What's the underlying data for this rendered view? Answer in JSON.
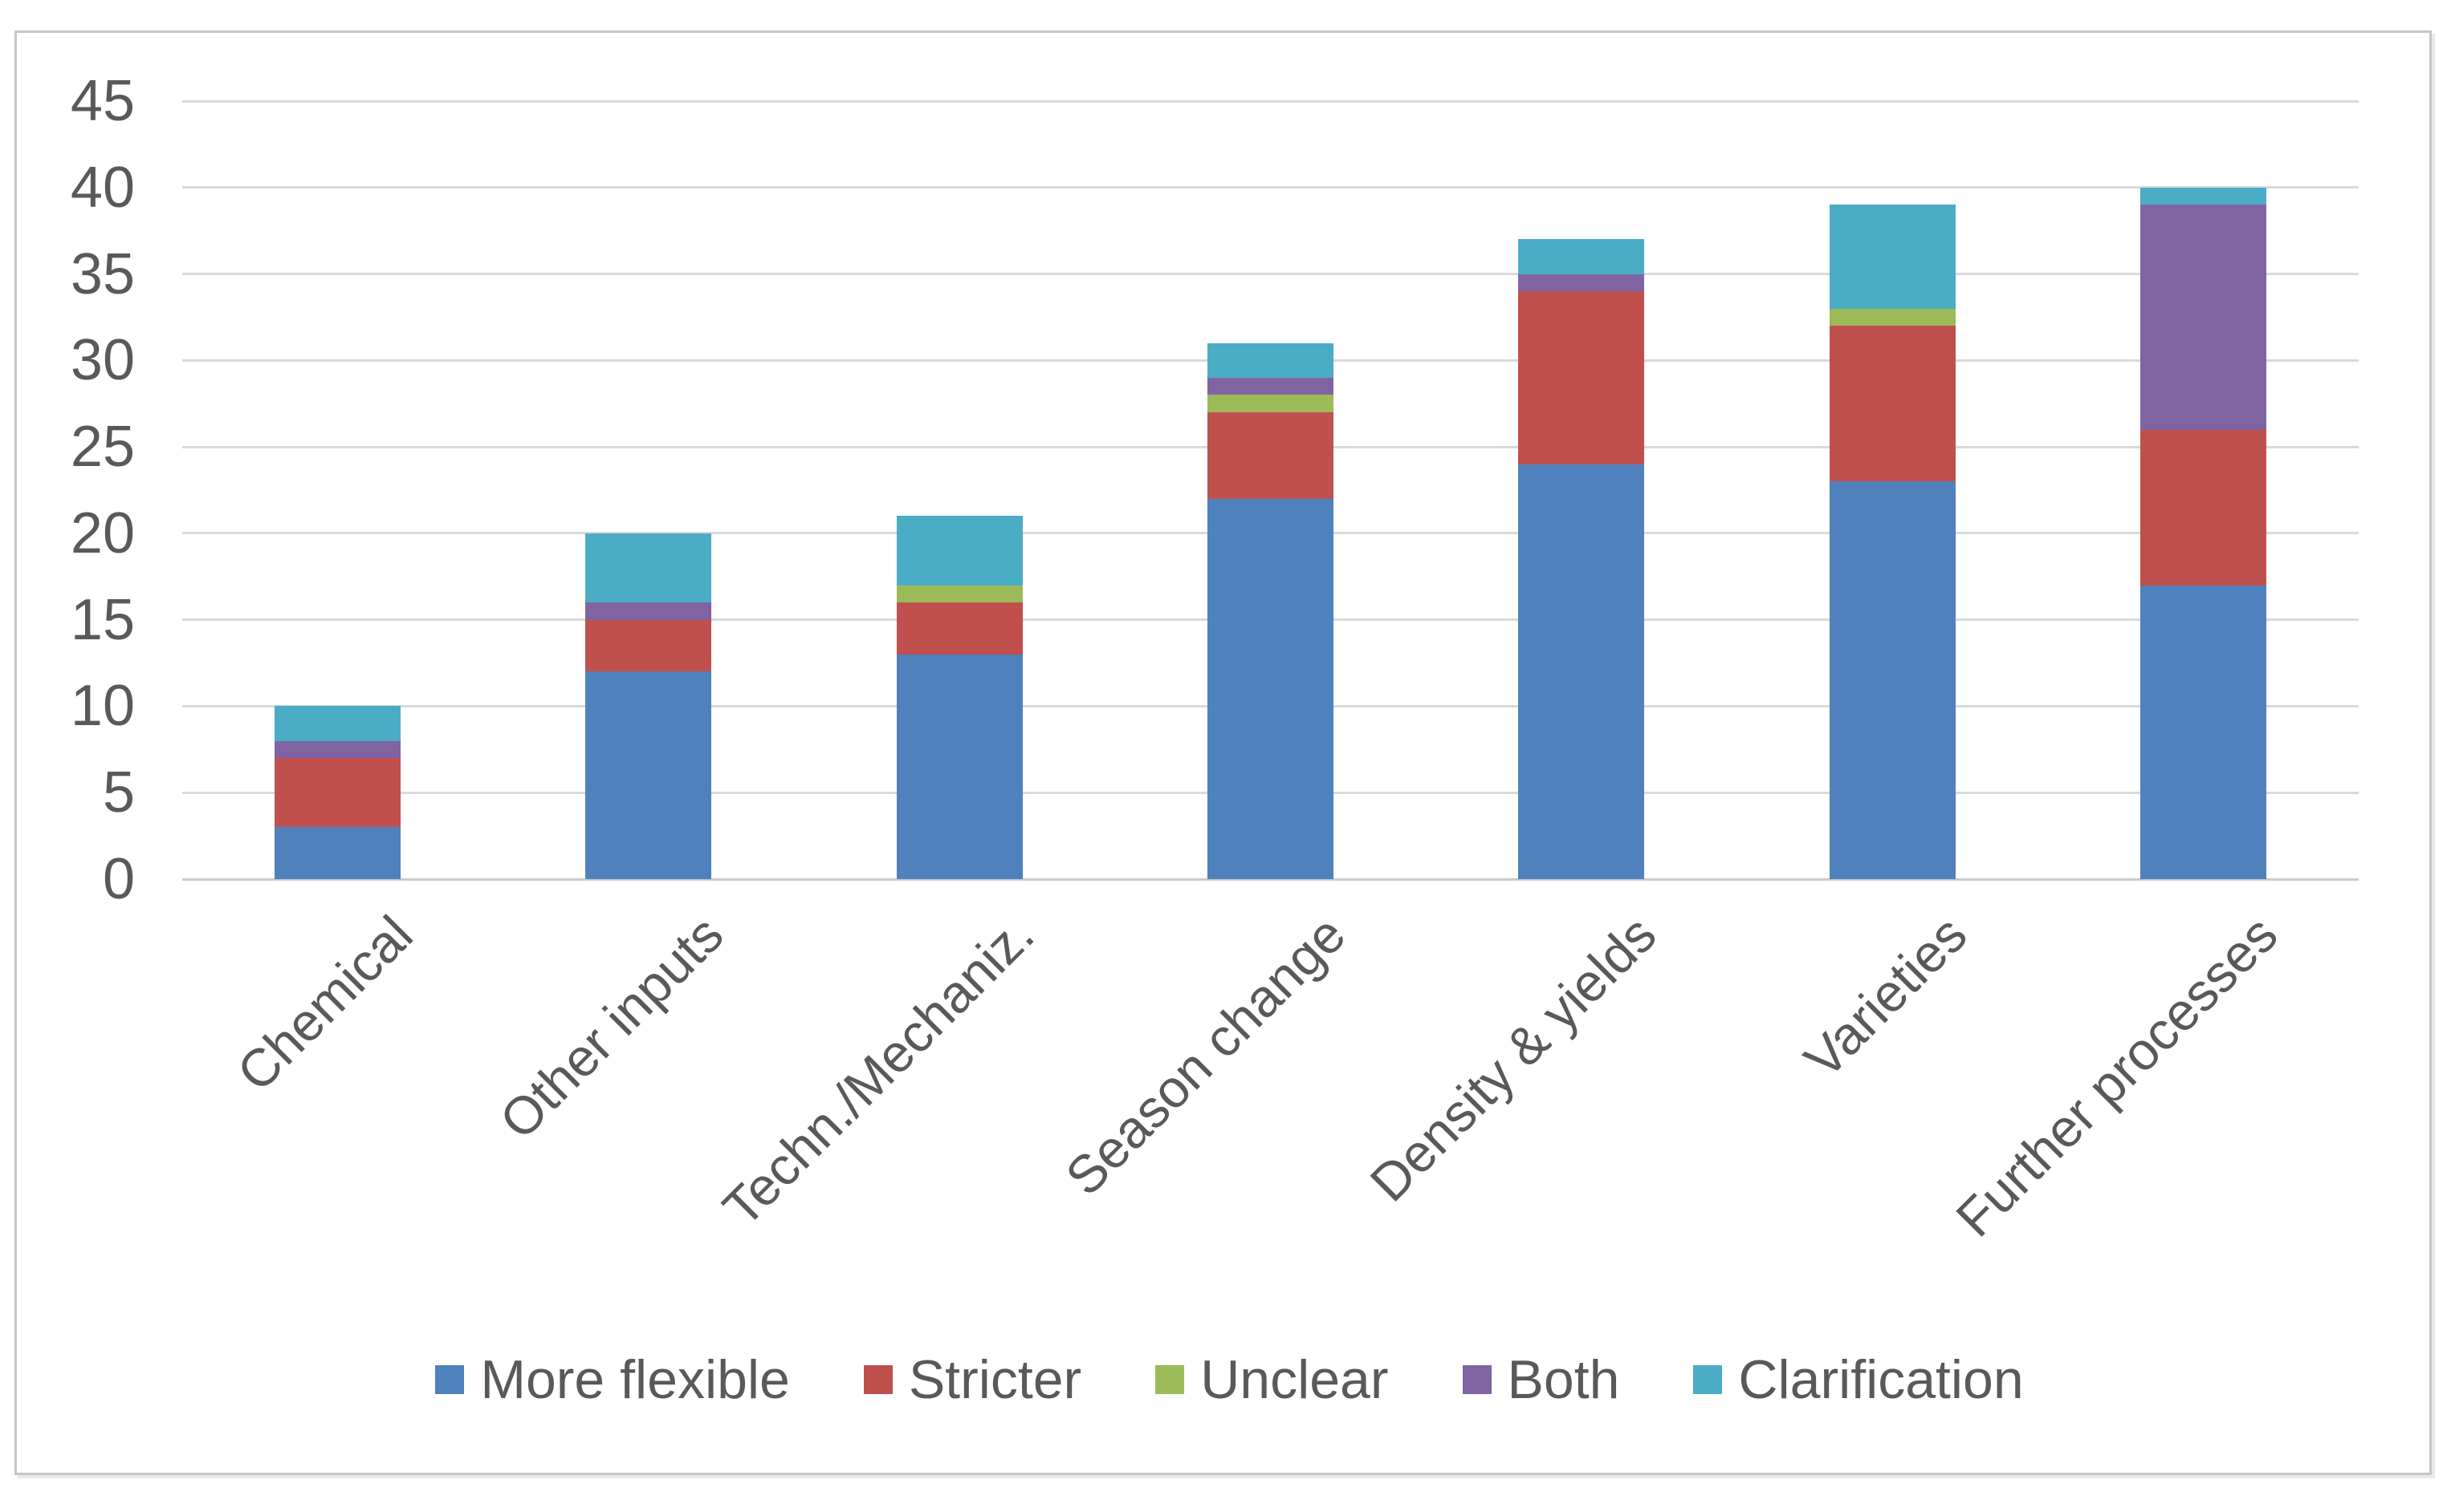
{
  "chart_data": {
    "type": "bar",
    "stacked": true,
    "title": "",
    "xlabel": "",
    "ylabel": "",
    "categories": [
      "Chemical",
      "Other inputs",
      "Techn./Mechaniz.",
      "Season change",
      "Density & yields",
      "Varieties",
      "Further processes"
    ],
    "series": [
      {
        "name": "More flexible",
        "color": "#4F81BD",
        "values": [
          3,
          12,
          13,
          22,
          24,
          23,
          17
        ]
      },
      {
        "name": "Stricter",
        "color": "#C0504D",
        "values": [
          4,
          3,
          3,
          5,
          10,
          9,
          9
        ]
      },
      {
        "name": "Unclear",
        "color": "#9BBB59",
        "values": [
          0,
          0,
          1,
          1,
          0,
          1,
          0
        ]
      },
      {
        "name": "Both",
        "color": "#8064A2",
        "values": [
          1,
          1,
          0,
          1,
          1,
          0,
          13
        ]
      },
      {
        "name": "Clarification",
        "color": "#4BACC6",
        "values": [
          2,
          4,
          4,
          2,
          2,
          6,
          1
        ]
      }
    ],
    "ylim": [
      0,
      45
    ],
    "yticks": [
      0,
      5,
      10,
      15,
      20,
      25,
      30,
      35,
      40,
      45
    ],
    "grid": true,
    "legend_position": "bottom"
  },
  "colors": {
    "background": "#ffffff",
    "gridline": "#d9d9d9",
    "baseline": "#c9c9c9",
    "text": "#595959",
    "frame_border": "#c6c6c6"
  }
}
